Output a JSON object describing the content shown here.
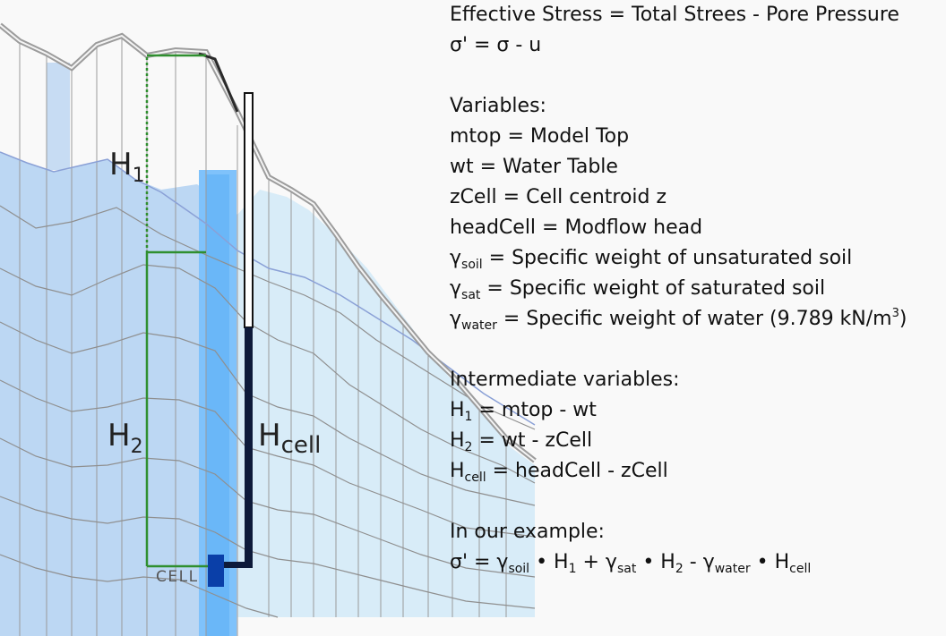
{
  "diagram": {
    "label_h1": "H",
    "label_h1_sub": "1",
    "label_h2": "H",
    "label_h2_sub": "2",
    "label_hcell": "H",
    "label_hcell_sub": "cell",
    "label_cell": "CELL",
    "colors": {
      "saturated": "#bcd7f3",
      "saturated_right": "#d8ecf8",
      "highlight_column": "#7fc2fb",
      "green": "#2f8f2f",
      "piezometer": "#0d1a3a",
      "cell_block": "#0a3fa8",
      "grid": "#9a9a9a"
    }
  },
  "equations": {
    "line1": "Effective Stress = Total Strees - Pore Pressure",
    "line2": "σ' = σ  - u",
    "variables_heading": "Variables:",
    "v_mtop": "mtop = Model Top",
    "v_wt": "wt = Water Table",
    "v_zcell": "zCell = Cell centroid z",
    "v_headcell": "headCell = Modflow head",
    "v_gsoil_sym": "γ",
    "v_gsoil_sub": "soil",
    "v_gsoil_text": " = Specific weight of unsaturated soil",
    "v_gsat_sym": "γ",
    "v_gsat_sub": "sat",
    "v_gsat_text": " = Specific weight of saturated soil",
    "v_gwater_sym": "γ",
    "v_gwater_sub": "water",
    "v_gwater_text": " = Specific weight of water (9.789 kN/m",
    "v_gwater_sup": "3",
    "v_gwater_close": ")",
    "intermediate_heading": "Intermediate variables:",
    "h1_sym": "H",
    "h1_sub": "1",
    "h1_text": " = mtop  - wt",
    "h2_sym": "H",
    "h2_sub": "2",
    "h2_text": " = wt - zCell",
    "hcell_sym": "H",
    "hcell_sub": "cell",
    "hcell_text": " = headCell - zCell",
    "example_heading": "In our example:",
    "ex_start": "σ' = γ",
    "ex_soil": "soil",
    "ex_dot1": " • H",
    "ex_1": "1",
    "ex_plus": "  + γ",
    "ex_sat": "sat",
    "ex_dot2": " • H",
    "ex_2": "2",
    "ex_minus": " - γ",
    "ex_water": "water",
    "ex_dot3": " • H",
    "ex_cell": "cell"
  }
}
